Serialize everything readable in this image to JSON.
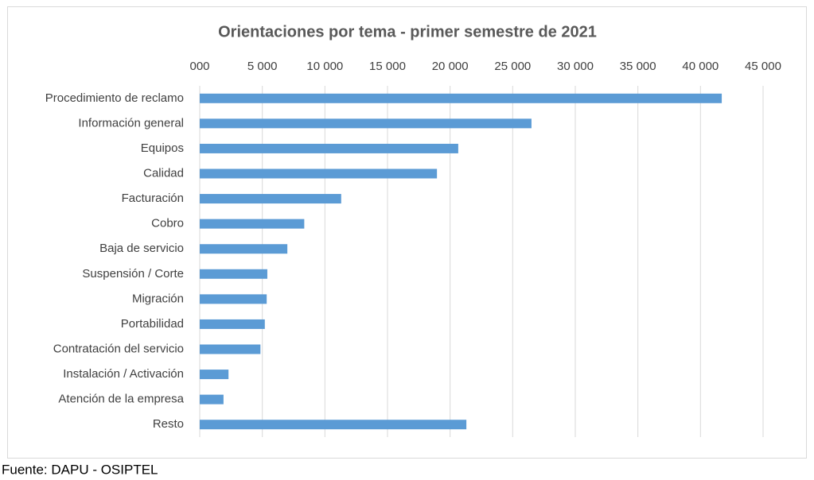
{
  "chart_data": {
    "type": "hbar",
    "title": "Orientaciones por tema - primer semestre de 2021",
    "categories": [
      "Procedimiento de reclamo",
      "Información general",
      "Equipos",
      "Calidad",
      "Facturación",
      "Cobro",
      "Baja de servicio",
      "Suspensión / Corte",
      "Migración",
      "Portabilidad",
      "Contratación del servicio",
      "Instalación / Activación",
      "Atención de la empresa",
      "Resto"
    ],
    "values": [
      41700,
      26500,
      20650,
      18950,
      11300,
      8350,
      7000,
      5400,
      5350,
      5200,
      4850,
      2300,
      1900,
      21300
    ],
    "color": "#5b9bd5",
    "xlim": [
      0,
      45000
    ],
    "xticks": [
      {
        "value": 0,
        "label": "000"
      },
      {
        "value": 5000,
        "label": "5 000"
      },
      {
        "value": 10000,
        "label": "10 000"
      },
      {
        "value": 15000,
        "label": "15 000"
      },
      {
        "value": 20000,
        "label": "20 000"
      },
      {
        "value": 25000,
        "label": "25 000"
      },
      {
        "value": 30000,
        "label": "30 000"
      },
      {
        "value": 35000,
        "label": "35 000"
      },
      {
        "value": 40000,
        "label": "40 000"
      },
      {
        "value": 45000,
        "label": "45 000"
      }
    ],
    "grid": true
  },
  "source": "Fuente: DAPU - OSIPTEL"
}
